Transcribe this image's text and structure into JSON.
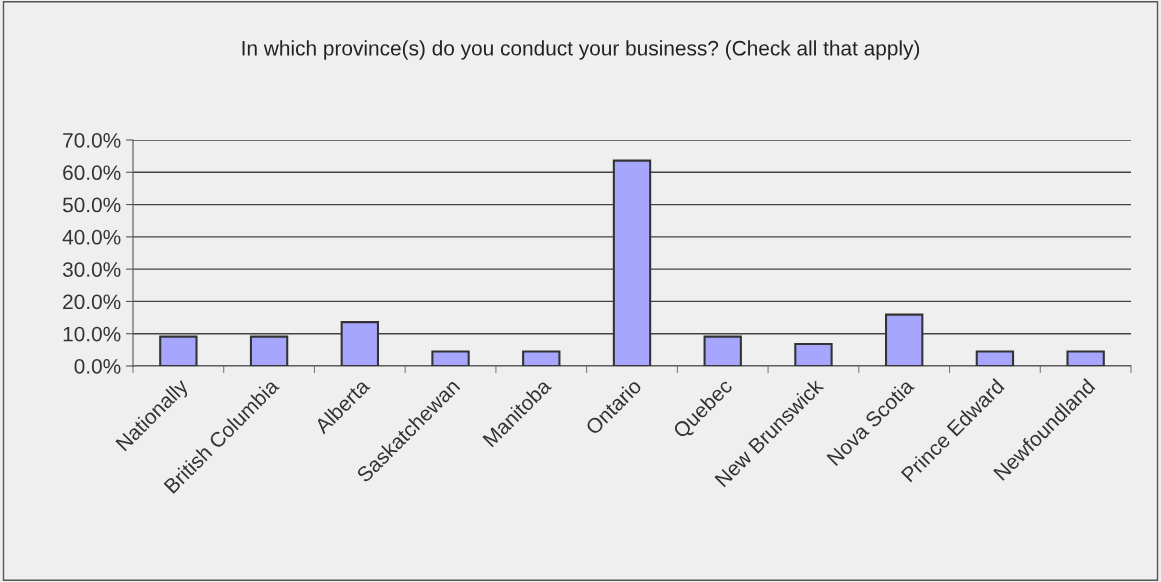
{
  "chart_data": {
    "type": "bar",
    "title": "In which province(s) do you conduct your business? (Check all that apply)",
    "categories": [
      "Nationally",
      "British Columbia",
      "Alberta",
      "Saskatchewan",
      "Manitoba",
      "Ontario",
      "Quebec",
      "New Brunswick",
      "Nova Scotia",
      "Prince Edward",
      "Newfoundland"
    ],
    "values": [
      9.1,
      9.1,
      13.6,
      4.5,
      4.5,
      63.6,
      9.1,
      6.8,
      15.9,
      4.5,
      4.5
    ],
    "color": "#a6a6ff",
    "ylim": [
      0,
      70
    ],
    "yticks": [
      {
        "value": 0,
        "label": "0.0%"
      },
      {
        "value": 10,
        "label": "10.0%"
      },
      {
        "value": 20,
        "label": "20.0%"
      },
      {
        "value": 30,
        "label": "30.0%"
      },
      {
        "value": 40,
        "label": "40.0%"
      },
      {
        "value": 50,
        "label": "50.0%"
      },
      {
        "value": 60,
        "label": "60.0%"
      },
      {
        "value": 70,
        "label": "70.0%"
      }
    ],
    "grid": "y",
    "legend": false
  }
}
